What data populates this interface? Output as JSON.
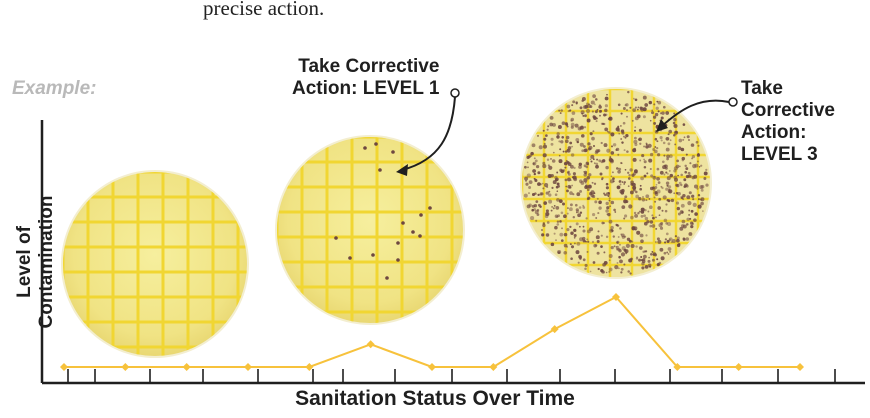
{
  "intro_text": "precise action.",
  "example_label": "Example:",
  "y_axis_label": "Level of Contamination",
  "x_axis_label": "Sanitation Status Over Time",
  "callouts": [
    {
      "lines": [
        "Take Corrective",
        "Action: LEVEL 1"
      ]
    },
    {
      "lines": [
        "Take",
        "Corrective",
        "Action:",
        "LEVEL 3"
      ]
    }
  ],
  "plates": [
    {
      "name": "clean-plate",
      "contamination": "none"
    },
    {
      "name": "level-1-plate",
      "contamination": "light"
    },
    {
      "name": "level-3-plate",
      "contamination": "heavy"
    }
  ],
  "chart_data": {
    "type": "line",
    "x": [
      1,
      2,
      3,
      4,
      5,
      6,
      7,
      8,
      9,
      10,
      11,
      12,
      13
    ],
    "values": [
      1,
      1,
      1,
      1,
      1,
      2.2,
      1,
      1,
      3,
      4.7,
      1,
      1,
      1
    ],
    "xlabel": "Sanitation Status Over Time",
    "ylabel": "Level of Contamination",
    "grid": false
  },
  "colors": {
    "line": "#f7c23c",
    "plate_fill": "#f3ea8c",
    "grid": "#f1d632",
    "axis": "#1f1f1f",
    "dots": "#6e4740"
  }
}
